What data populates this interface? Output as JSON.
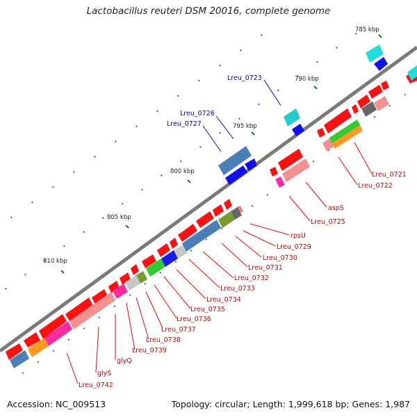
{
  "title": "Lactobacillus reuteri DSM 20016, complete genome",
  "footer": {
    "accession": "Accession: NC_009513",
    "summary": "Topology: circular; Length: 1,999,618 bp; Genes: 1,987"
  },
  "scale_labels": [
    "785 kbp",
    "790 kbp",
    "795 kbp",
    "800 kbp",
    "805 kbp",
    "810 kbp"
  ],
  "gene_labels_reverse": [
    "Lreu_0721",
    "Lreu_0722",
    "aspS",
    "Lreu_0725",
    "rpsU",
    "Lreu_0729",
    "Lreu_0730",
    "Lreu_0731",
    "Lreu_0732",
    "Lreu_0733",
    "Lreu_0734",
    "Lreu_0735",
    "Lreu_0736",
    "Lreu_0737",
    "Lreu_0738",
    "Lreu_0739",
    "glyQ",
    "glyS",
    "Lreu_0742"
  ],
  "gene_labels_forward": [
    "Lreu_0723",
    "Lreu_0726",
    "Lreu_0727"
  ],
  "colors": {
    "backbone": "#7a7a7a",
    "reverse_gene": "#ff0000",
    "forward_gene": "#0000ff",
    "label_reverse": "#cc0000",
    "label_forward": "#0000cc",
    "tick": "#1a7a1a"
  }
}
